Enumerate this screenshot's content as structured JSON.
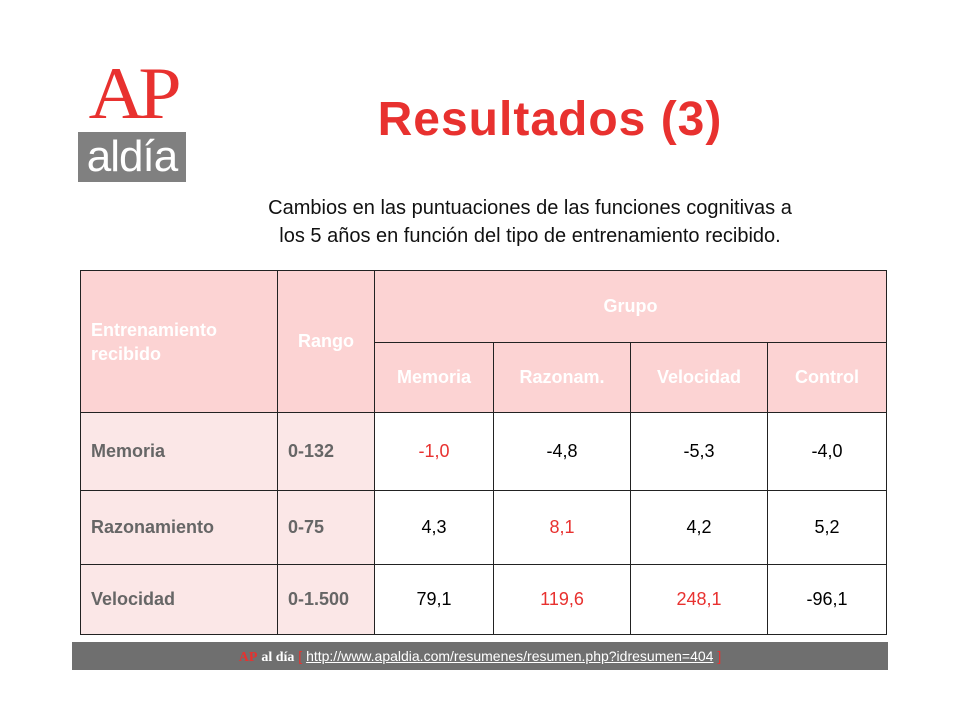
{
  "logo": {
    "ap": "AP",
    "aldia": "aldía"
  },
  "title": "Resultados (3)",
  "subtitle_line1": "Cambios en las puntuaciones de las funciones cognitivas a",
  "subtitle_line2": "los 5 años en función del tipo de entrenamiento recibido.",
  "table": {
    "col_training": "Entrenamiento recibido",
    "col_range": "Rango",
    "col_group": "Grupo",
    "groups": [
      "Memoria",
      "Razonam.",
      "Velocidad",
      "Control"
    ],
    "rows": [
      {
        "training": "Memoria",
        "range": "0-132",
        "values": [
          "-1,0",
          "-4,8",
          "-5,3",
          "-4,0"
        ],
        "highlight": [
          0
        ]
      },
      {
        "training": "Razonamiento",
        "range": "0-75",
        "values": [
          "4,3",
          "8,1",
          "4,2",
          "5,2"
        ],
        "highlight": [
          1
        ]
      },
      {
        "training": "Velocidad",
        "range": "0-1.500",
        "values": [
          "79,1",
          "119,6",
          "248,1",
          "-96,1"
        ],
        "highlight": [
          1,
          2
        ]
      }
    ]
  },
  "footer": {
    "ap": "AP",
    "aldia": "al día",
    "open_bracket": "[",
    "url": "http://www.apaldia.com/resumenes/resumen.php?idresumen=404",
    "close_bracket": "]"
  },
  "colors": {
    "accent": "#e8312f",
    "header_bg": "#fcd3d3",
    "rowhead_bg": "#fbe7e7",
    "footer_bg": "#6f6f6f"
  }
}
